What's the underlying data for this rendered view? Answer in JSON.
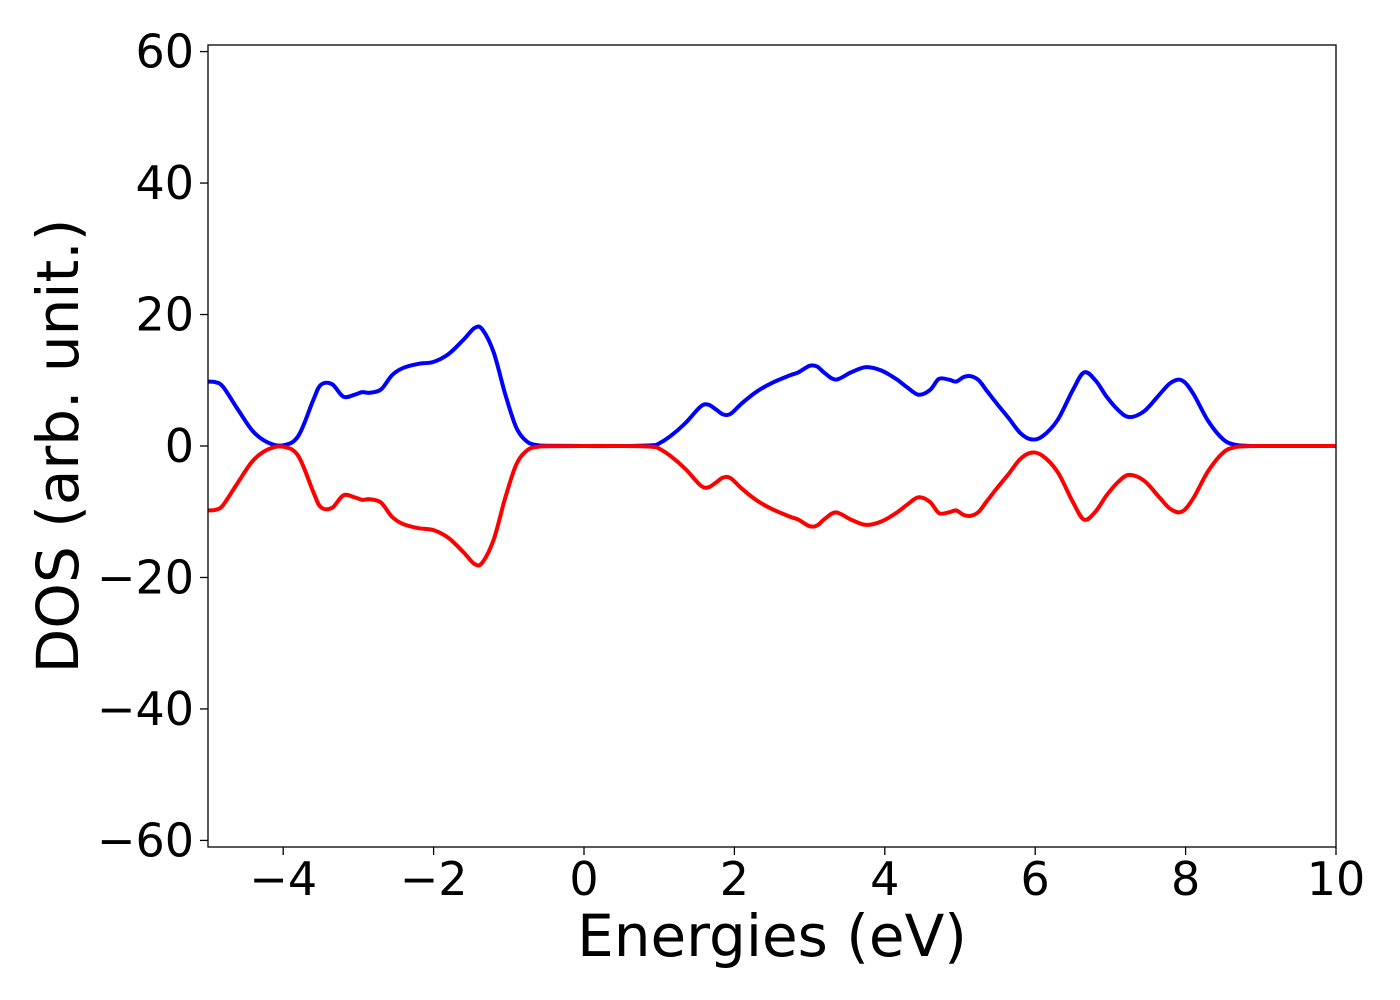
{
  "chart_data": {
    "type": "line",
    "title": "",
    "xlabel": "Energies (eV)",
    "ylabel": "DOS (arb. unit.)",
    "xlim": [
      -5,
      10
    ],
    "ylim": [
      -61,
      61
    ],
    "x_ticks": [
      -4,
      -2,
      0,
      2,
      4,
      6,
      8,
      10
    ],
    "x_tick_labels": [
      "−4",
      "−2",
      "0",
      "2",
      "4",
      "6",
      "8",
      "10"
    ],
    "y_ticks": [
      60,
      40,
      20,
      0,
      -20,
      -40,
      -60
    ],
    "y_tick_labels": [
      "60",
      "40",
      "20",
      "0",
      "−20",
      "−40",
      "−60"
    ],
    "grid": false,
    "legend": "none",
    "series": [
      {
        "color": "#0000ff",
        "x": [
          -5.0,
          -4.9,
          -4.8,
          -4.6,
          -4.4,
          -4.2,
          -4.0,
          -3.8,
          -3.6,
          -3.5,
          -3.35,
          -3.2,
          -3.05,
          -2.95,
          -2.85,
          -2.7,
          -2.55,
          -2.4,
          -2.2,
          -2.0,
          -1.8,
          -1.6,
          -1.45,
          -1.35,
          -1.2,
          -1.05,
          -0.9,
          -0.75,
          -0.6,
          -0.5,
          0.0,
          0.5,
          0.9,
          1.0,
          1.15,
          1.35,
          1.55,
          1.65,
          1.75,
          1.85,
          1.95,
          2.1,
          2.3,
          2.5,
          2.75,
          2.85,
          3.0,
          3.1,
          3.2,
          3.35,
          3.55,
          3.75,
          3.95,
          4.15,
          4.3,
          4.45,
          4.6,
          4.72,
          4.85,
          4.95,
          5.05,
          5.15,
          5.25,
          5.35,
          5.5,
          5.65,
          5.8,
          5.95,
          6.1,
          6.3,
          6.5,
          6.65,
          6.8,
          6.95,
          7.1,
          7.25,
          7.45,
          7.65,
          7.8,
          7.95,
          8.1,
          8.3,
          8.5,
          8.65,
          8.8,
          9.0,
          10.0
        ],
        "y": [
          9.8,
          9.7,
          9.0,
          5.5,
          2.2,
          0.5,
          0.1,
          1.5,
          7.0,
          9.3,
          9.4,
          7.5,
          7.8,
          8.2,
          8.1,
          8.6,
          10.8,
          11.9,
          12.5,
          12.8,
          14.0,
          16.2,
          18.0,
          17.7,
          14.2,
          8.0,
          2.8,
          0.6,
          0.1,
          0.05,
          0.0,
          0.0,
          0.1,
          0.4,
          1.5,
          3.5,
          6.0,
          6.3,
          5.6,
          4.8,
          4.9,
          6.5,
          8.3,
          9.6,
          10.8,
          11.2,
          12.2,
          12.1,
          11.1,
          10.1,
          11.2,
          12.0,
          11.5,
          10.2,
          8.9,
          7.8,
          8.5,
          10.2,
          10.1,
          9.8,
          10.5,
          10.6,
          10.0,
          8.5,
          6.3,
          4.2,
          2.0,
          1.0,
          1.5,
          4.0,
          8.5,
          11.2,
          10.0,
          7.5,
          5.5,
          4.4,
          5.3,
          7.8,
          9.6,
          10.0,
          8.0,
          3.8,
          1.0,
          0.2,
          0.05,
          0.0,
          0.0
        ]
      },
      {
        "color": "#ff0000",
        "x": [
          -5.0,
          -4.9,
          -4.8,
          -4.6,
          -4.4,
          -4.2,
          -4.0,
          -3.8,
          -3.6,
          -3.5,
          -3.35,
          -3.2,
          -3.05,
          -2.95,
          -2.85,
          -2.7,
          -2.55,
          -2.4,
          -2.2,
          -2.0,
          -1.8,
          -1.6,
          -1.45,
          -1.35,
          -1.2,
          -1.05,
          -0.9,
          -0.75,
          -0.6,
          -0.5,
          0.0,
          0.5,
          0.9,
          1.0,
          1.15,
          1.35,
          1.55,
          1.65,
          1.75,
          1.85,
          1.95,
          2.1,
          2.3,
          2.5,
          2.75,
          2.85,
          3.0,
          3.1,
          3.2,
          3.35,
          3.55,
          3.75,
          3.95,
          4.15,
          4.3,
          4.45,
          4.6,
          4.72,
          4.85,
          4.95,
          5.05,
          5.15,
          5.25,
          5.35,
          5.5,
          5.65,
          5.8,
          5.95,
          6.1,
          6.3,
          6.5,
          6.65,
          6.8,
          6.95,
          7.1,
          7.25,
          7.45,
          7.65,
          7.8,
          7.95,
          8.1,
          8.3,
          8.5,
          8.65,
          8.8,
          9.0,
          10.0
        ],
        "y": [
          -9.8,
          -9.7,
          -9.0,
          -5.5,
          -2.2,
          -0.5,
          -0.1,
          -1.5,
          -7.0,
          -9.3,
          -9.4,
          -7.5,
          -7.8,
          -8.2,
          -8.1,
          -8.6,
          -10.8,
          -11.9,
          -12.5,
          -12.8,
          -14.0,
          -16.2,
          -18.0,
          -17.7,
          -14.2,
          -8.0,
          -2.8,
          -0.6,
          -0.1,
          -0.05,
          0.0,
          0.0,
          -0.1,
          -0.4,
          -1.5,
          -3.5,
          -6.0,
          -6.3,
          -5.6,
          -4.8,
          -4.9,
          -6.5,
          -8.3,
          -9.6,
          -10.8,
          -11.2,
          -12.2,
          -12.1,
          -11.1,
          -10.1,
          -11.2,
          -12.0,
          -11.5,
          -10.2,
          -8.9,
          -7.8,
          -8.5,
          -10.2,
          -10.1,
          -9.8,
          -10.5,
          -10.6,
          -10.0,
          -8.5,
          -6.3,
          -4.2,
          -2.0,
          -1.0,
          -1.5,
          -4.0,
          -8.5,
          -11.2,
          -10.0,
          -7.5,
          -5.5,
          -4.4,
          -5.3,
          -7.8,
          -9.6,
          -10.0,
          -8.0,
          -3.8,
          -1.0,
          -0.2,
          -0.05,
          0.0,
          0.0
        ]
      }
    ]
  }
}
